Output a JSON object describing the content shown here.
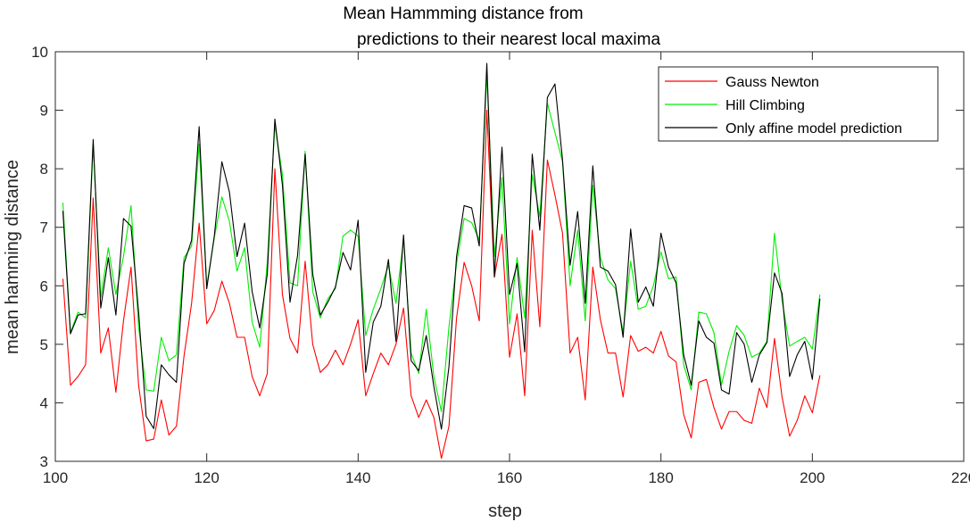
{
  "chart_data": {
    "type": "line",
    "title": [
      "Mean Hammming distance from",
      "predictions to their nearest local maxima"
    ],
    "xlabel": "step",
    "ylabel": "mean hamming distance",
    "xlim": [
      100,
      220
    ],
    "ylim": [
      3,
      10
    ],
    "xticks": [
      "100",
      "120",
      "140",
      "160",
      "180",
      "200",
      "220"
    ],
    "yticks": [
      "3",
      "4",
      "5",
      "6",
      "7",
      "8",
      "9",
      "10"
    ],
    "grid": false,
    "legend_position": "top-right",
    "x_start": 101,
    "series": [
      {
        "name": "Gauss Newton",
        "color": "#ff0000",
        "values": [
          6.12,
          4.3,
          4.45,
          4.65,
          7.5,
          4.85,
          5.28,
          4.18,
          5.4,
          6.32,
          4.3,
          3.35,
          3.38,
          4.05,
          3.45,
          3.6,
          4.8,
          5.7,
          7.07,
          5.35,
          5.58,
          6.08,
          5.7,
          5.12,
          5.12,
          4.45,
          4.12,
          4.5,
          8.0,
          5.85,
          5.1,
          4.85,
          6.42,
          5.0,
          4.52,
          4.65,
          4.9,
          4.65,
          5.0,
          5.42,
          4.12,
          4.5,
          4.85,
          4.65,
          5.0,
          5.62,
          4.12,
          3.75,
          4.05,
          3.75,
          3.05,
          3.6,
          5.45,
          6.4,
          6.0,
          5.4,
          9.0,
          6.15,
          6.88,
          4.78,
          5.52,
          4.12,
          6.95,
          5.3,
          8.15,
          7.55,
          6.9,
          4.85,
          5.12,
          4.05,
          6.32,
          5.42,
          4.85,
          4.85,
          4.1,
          5.15,
          4.88,
          4.95,
          4.85,
          5.22,
          4.8,
          4.7,
          3.8,
          3.4,
          4.35,
          4.4,
          3.92,
          3.55,
          3.85,
          3.85,
          3.7,
          3.65,
          4.25,
          3.92,
          5.1,
          4.1,
          3.43,
          3.7,
          4.12,
          3.83,
          4.47
        ]
      },
      {
        "name": "Hill Climbing",
        "color": "#00ee00",
        "values": [
          7.42,
          5.2,
          5.55,
          5.45,
          8.42,
          5.8,
          6.65,
          5.85,
          6.5,
          7.37,
          5.3,
          4.22,
          4.2,
          5.12,
          4.72,
          4.82,
          6.48,
          6.68,
          8.42,
          6.0,
          6.82,
          7.52,
          7.1,
          6.25,
          6.65,
          5.38,
          4.95,
          6.4,
          8.75,
          7.9,
          6.05,
          6.0,
          8.3,
          5.9,
          5.45,
          5.78,
          5.95,
          6.85,
          6.95,
          6.85,
          5.15,
          5.6,
          5.95,
          6.35,
          5.7,
          6.8,
          4.85,
          4.5,
          5.6,
          4.45,
          3.85,
          5.3,
          6.38,
          7.15,
          7.08,
          6.78,
          9.62,
          6.5,
          7.85,
          5.35,
          6.48,
          5.45,
          7.9,
          7.18,
          9.12,
          8.62,
          8.12,
          6.0,
          6.95,
          5.4,
          7.72,
          6.48,
          6.1,
          5.95,
          5.2,
          6.42,
          5.6,
          5.65,
          6.0,
          6.58,
          6.12,
          6.15,
          4.65,
          4.22,
          5.55,
          5.52,
          5.2,
          4.3,
          4.88,
          5.32,
          5.15,
          4.78,
          4.85,
          5.05,
          6.9,
          5.75,
          4.97,
          5.05,
          5.12,
          4.92,
          5.85
        ]
      },
      {
        "name": "Only affine model prediction",
        "color": "#000000",
        "values": [
          7.28,
          5.18,
          5.5,
          5.52,
          8.5,
          5.62,
          6.48,
          5.5,
          7.15,
          7.02,
          5.55,
          3.77,
          3.56,
          4.65,
          4.48,
          4.35,
          6.38,
          6.78,
          8.72,
          5.95,
          6.85,
          8.12,
          7.6,
          6.5,
          7.07,
          5.9,
          5.28,
          6.2,
          8.85,
          7.72,
          5.72,
          6.52,
          8.25,
          6.2,
          5.5,
          5.72,
          5.98,
          6.57,
          6.27,
          7.12,
          4.52,
          5.38,
          5.65,
          6.45,
          5.05,
          6.87,
          4.72,
          4.55,
          5.15,
          4.28,
          3.55,
          4.62,
          6.5,
          7.37,
          7.33,
          6.68,
          9.8,
          6.15,
          8.37,
          5.85,
          6.38,
          4.87,
          8.25,
          6.95,
          9.22,
          9.45,
          8.15,
          6.35,
          7.27,
          5.7,
          8.05,
          6.32,
          6.25,
          6.02,
          5.12,
          6.97,
          5.72,
          5.98,
          5.65,
          6.9,
          6.32,
          6.05,
          4.82,
          4.3,
          5.4,
          5.12,
          5.02,
          4.22,
          4.15,
          5.2,
          5.0,
          4.35,
          4.82,
          5.03,
          6.22,
          5.87,
          4.45,
          4.82,
          5.05,
          4.4,
          5.78
        ]
      }
    ]
  }
}
